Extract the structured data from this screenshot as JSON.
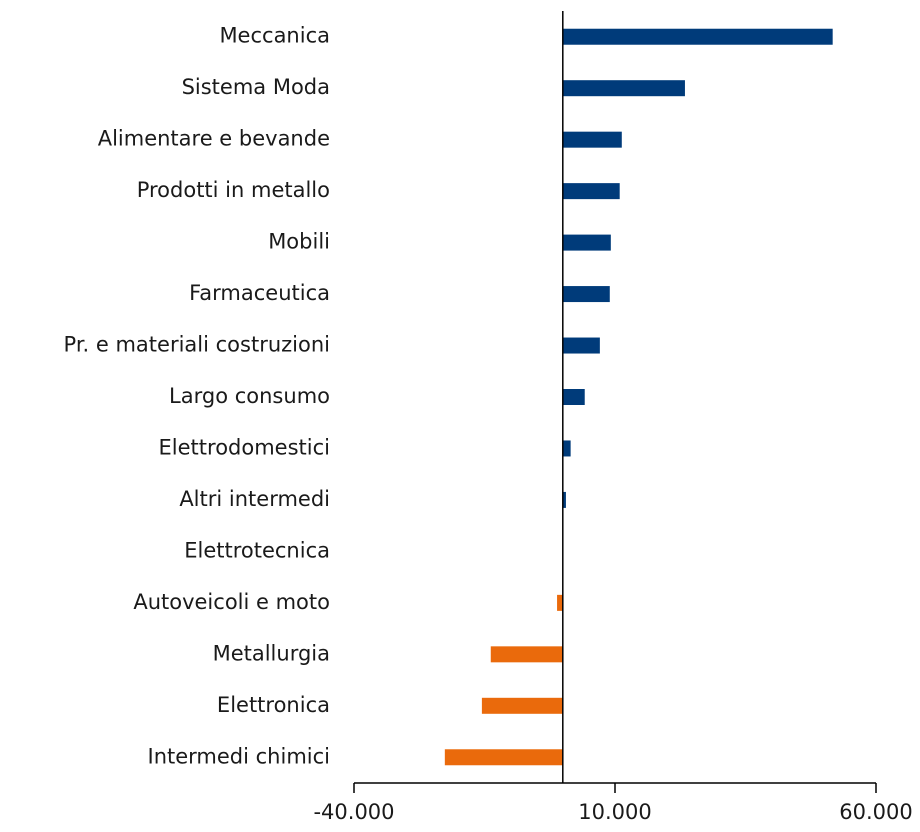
{
  "chart_data": {
    "type": "barh",
    "categories": [
      "Meccanica",
      "Sistema Moda",
      "Alimentare e bevande",
      "Prodotti in metallo",
      "Mobili",
      "Farmaceutica",
      "Pr. e materiali costruzioni",
      "Largo consumo",
      "Elettrodomestici",
      "Altri intermedi",
      "Elettrotecnica",
      "Autoveicoli e moto",
      "Metallurgia",
      "Elettronica",
      "Intermedi chimici"
    ],
    "values": [
      51700,
      23400,
      11300,
      10900,
      9200,
      9000,
      7100,
      4200,
      1500,
      600,
      0,
      -1100,
      -13800,
      -15500,
      -22600
    ],
    "color_positive": "#003b7a",
    "color_negative": "#ea6a0c",
    "xlim": [
      -40000,
      60000
    ],
    "xticks": [
      {
        "value": -40000,
        "label": "-40.000"
      },
      {
        "value": 10000,
        "label": "10.000"
      },
      {
        "value": 60000,
        "label": "60.000"
      }
    ]
  }
}
